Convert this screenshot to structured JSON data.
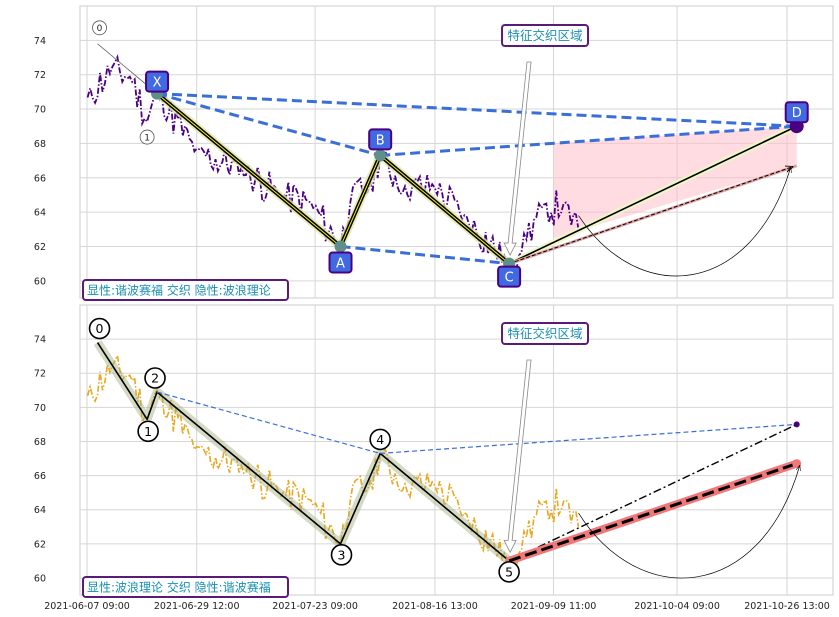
{
  "chart_data": [
    {
      "type": "line",
      "panel": "top",
      "title": "",
      "xlabel": "",
      "ylabel": "",
      "ylim": [
        59,
        76
      ],
      "yticks": [
        60,
        62,
        64,
        66,
        68,
        70,
        72,
        74
      ],
      "grid": true,
      "annotation_label": "特征交织区域",
      "legend_text": "显性:谐波赛福 交织 隐性:波浪理论",
      "pattern_points": [
        {
          "label": "X",
          "date": "2021-06-21",
          "value": 70.9
        },
        {
          "label": "A",
          "date": "2021-07-28",
          "value": 62.0
        },
        {
          "label": "B",
          "date": "2021-08-05",
          "value": 67.3
        },
        {
          "label": "C",
          "date": "2021-08-31",
          "value": 61.0
        },
        {
          "label": "D",
          "date": "2021-10-28",
          "value": 69.0
        }
      ],
      "wave_markers": [
        {
          "label": "0",
          "date": "2021-06-09",
          "value": 73.8
        },
        {
          "label": "1",
          "date": "2021-06-19",
          "value": 69.3
        }
      ]
    },
    {
      "type": "line",
      "panel": "bottom",
      "title": "",
      "xlabel": "",
      "ylabel": "",
      "ylim": [
        59,
        76
      ],
      "yticks": [
        60,
        62,
        64,
        66,
        68,
        70,
        72,
        74
      ],
      "grid": true,
      "x_ticks": [
        "2021-06-07 09:00",
        "2021-06-29 12:00",
        "2021-07-23 09:00",
        "2021-08-16 13:00",
        "2021-09-09 11:00",
        "2021-10-04 09:00",
        "2021-10-26 13:00"
      ],
      "annotation_label": "特征交织区域",
      "legend_text": "显性:波浪理论 交织 隐性:谐波赛福",
      "wave_points": [
        {
          "label": "0",
          "date": "2021-06-09",
          "value": 73.8
        },
        {
          "label": "1",
          "date": "2021-06-19",
          "value": 69.3
        },
        {
          "label": "2",
          "date": "2021-06-21",
          "value": 70.9
        },
        {
          "label": "3",
          "date": "2021-07-28",
          "value": 62.0
        },
        {
          "label": "4",
          "date": "2021-08-05",
          "value": 67.3
        },
        {
          "label": "5",
          "date": "2021-08-31",
          "value": 61.0
        }
      ],
      "projection": {
        "date": "2021-10-28",
        "value": 66.7
      }
    }
  ]
}
